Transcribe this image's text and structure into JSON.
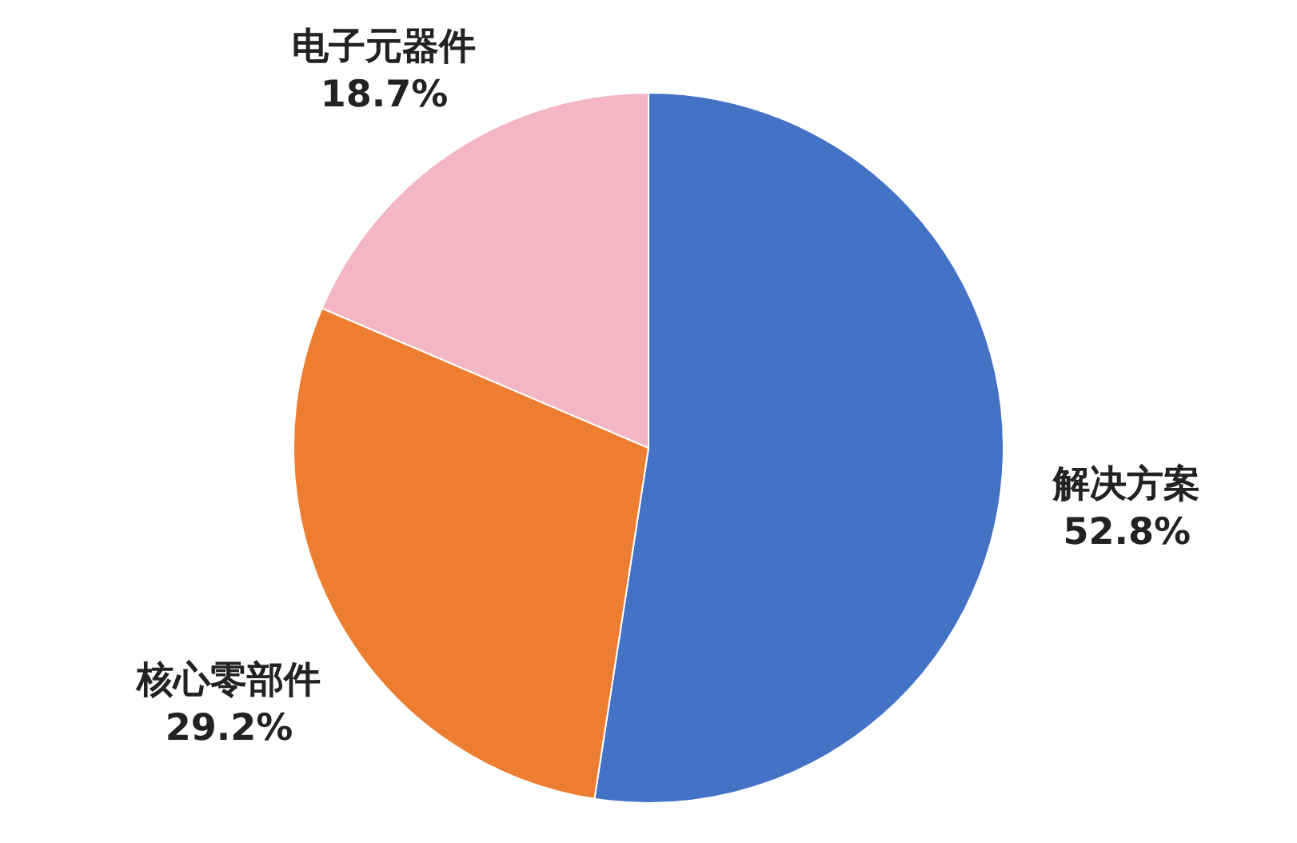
{
  "chart_data": {
    "type": "pie",
    "categories": [
      "解决方案",
      "核心零部件",
      "电子元器件"
    ],
    "values": [
      52.8,
      29.2,
      18.7
    ],
    "colors": [
      "#4472c4",
      "#ed7d31",
      "#f4b6c2"
    ],
    "value_labels": [
      "52.8%",
      "29.2%",
      "18.7%"
    ],
    "legend": false
  }
}
